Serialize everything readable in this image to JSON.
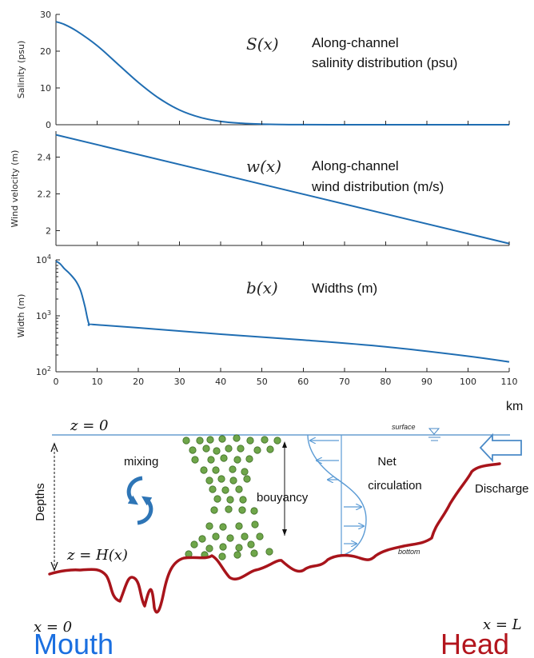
{
  "chart_data": [
    {
      "type": "line",
      "ylabel": "Salinity (psu)",
      "xlim": [
        0,
        110
      ],
      "ylim": [
        0,
        30
      ],
      "yticks": [
        0,
        10,
        20,
        30
      ],
      "series": [
        {
          "x": [
            0,
            2,
            5,
            10,
            15,
            20,
            25,
            30,
            35,
            40,
            45,
            50,
            55,
            60,
            70,
            80,
            90,
            100,
            110
          ],
          "values": [
            28,
            27.3,
            25.5,
            21.5,
            16.5,
            11.5,
            7.2,
            4,
            2,
            0.9,
            0.4,
            0.15,
            0.05,
            0.02,
            0.01,
            0,
            0,
            0,
            0
          ]
        }
      ],
      "annotation_symbol": "S(x)",
      "annotation_text": [
        "Along-channel",
        "salinity distribution (psu)"
      ]
    },
    {
      "type": "line",
      "ylabel": "Wind velocity (m)",
      "xlim": [
        0,
        110
      ],
      "ylim": [
        1.92,
        2.54
      ],
      "yticks": [
        2,
        2.2,
        2.4
      ],
      "ytick_labels": [
        "2",
        "2.2",
        "2.4"
      ],
      "series": [
        {
          "x": [
            0,
            110
          ],
          "values": [
            2.52,
            1.93
          ]
        }
      ],
      "annotation_symbol": "w(x)",
      "annotation_text": [
        "Along-channel",
        "wind distribution (m/s)"
      ]
    },
    {
      "type": "line",
      "ylabel": "Width (m)",
      "yscale": "log",
      "xlim": [
        0,
        110
      ],
      "ylim": [
        100,
        10000
      ],
      "yticks": [
        100,
        1000,
        10000
      ],
      "series": [
        {
          "x": [
            0,
            1,
            2,
            3,
            4,
            5,
            6,
            7,
            8,
            9,
            20,
            40,
            60,
            80,
            100,
            110
          ],
          "values": [
            9500,
            8500,
            7000,
            6000,
            5000,
            4000,
            2800,
            1500,
            720,
            700,
            610,
            470,
            370,
            280,
            190,
            150
          ]
        }
      ],
      "annotation_symbol": "b(x)",
      "annotation_text": [
        "Widths (m)"
      ],
      "xticks": [
        0,
        10,
        20,
        30,
        40,
        50,
        60,
        70,
        80,
        90,
        100,
        110
      ],
      "xlabel": "km"
    }
  ],
  "schematic": {
    "surface_eq": "z = 0",
    "bottom_eq": "z = H(x)",
    "mouth_eq": "x = 0",
    "head_eq": "x = L",
    "surface_label": "surface",
    "bottom_label": "bottom",
    "mixing_label": "mixing",
    "buoyancy_label": "bouyancy",
    "net_circulation_label": [
      "Net",
      "circulation"
    ],
    "discharge_label": "Discharge",
    "depths_label": "Depths",
    "mouth_label": "Mouth",
    "head_label": "Head",
    "colors": {
      "curve": "#1f6db2",
      "mouth": "#1a6fe0",
      "head": "#b3151d",
      "bottom_line": "#a8141b",
      "particles": "#6fa64a",
      "arrows": "#5b9bd5",
      "mixing_arrows": "#2e75b6"
    }
  }
}
